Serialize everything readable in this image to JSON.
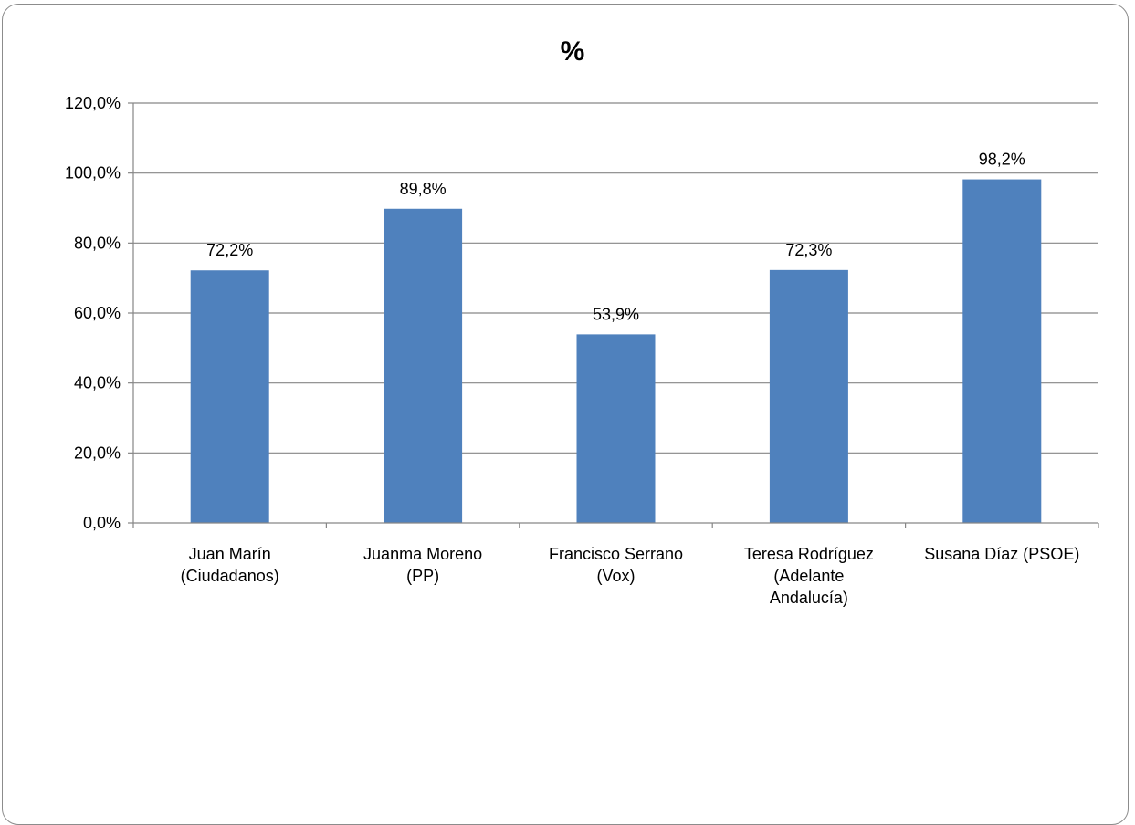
{
  "chart_data": {
    "type": "bar",
    "title": "%",
    "categories": [
      [
        "Juan Marín",
        "(Ciudadanos)"
      ],
      [
        "Juanma Moreno",
        "(PP)"
      ],
      [
        "Francisco Serrano",
        "(Vox)"
      ],
      [
        "Teresa Rodríguez",
        "(Adelante",
        "Andalucía)"
      ],
      [
        "Susana Díaz (PSOE)"
      ]
    ],
    "values": [
      72.2,
      89.8,
      53.9,
      72.3,
      98.2
    ],
    "data_labels": [
      "72,2%",
      "89,8%",
      "53,9%",
      "72,3%",
      "98,2%"
    ],
    "ylim": [
      0,
      120
    ],
    "yticks": [
      0,
      20,
      40,
      60,
      80,
      100,
      120
    ],
    "ytick_labels": [
      "0,0%",
      "20,0%",
      "40,0%",
      "60,0%",
      "80,0%",
      "100,0%",
      "120,0%"
    ],
    "xlabel": "",
    "ylabel": "",
    "grid": true,
    "legend": "none",
    "bar_color": "#4f81bd",
    "grid_color": "#868686"
  }
}
